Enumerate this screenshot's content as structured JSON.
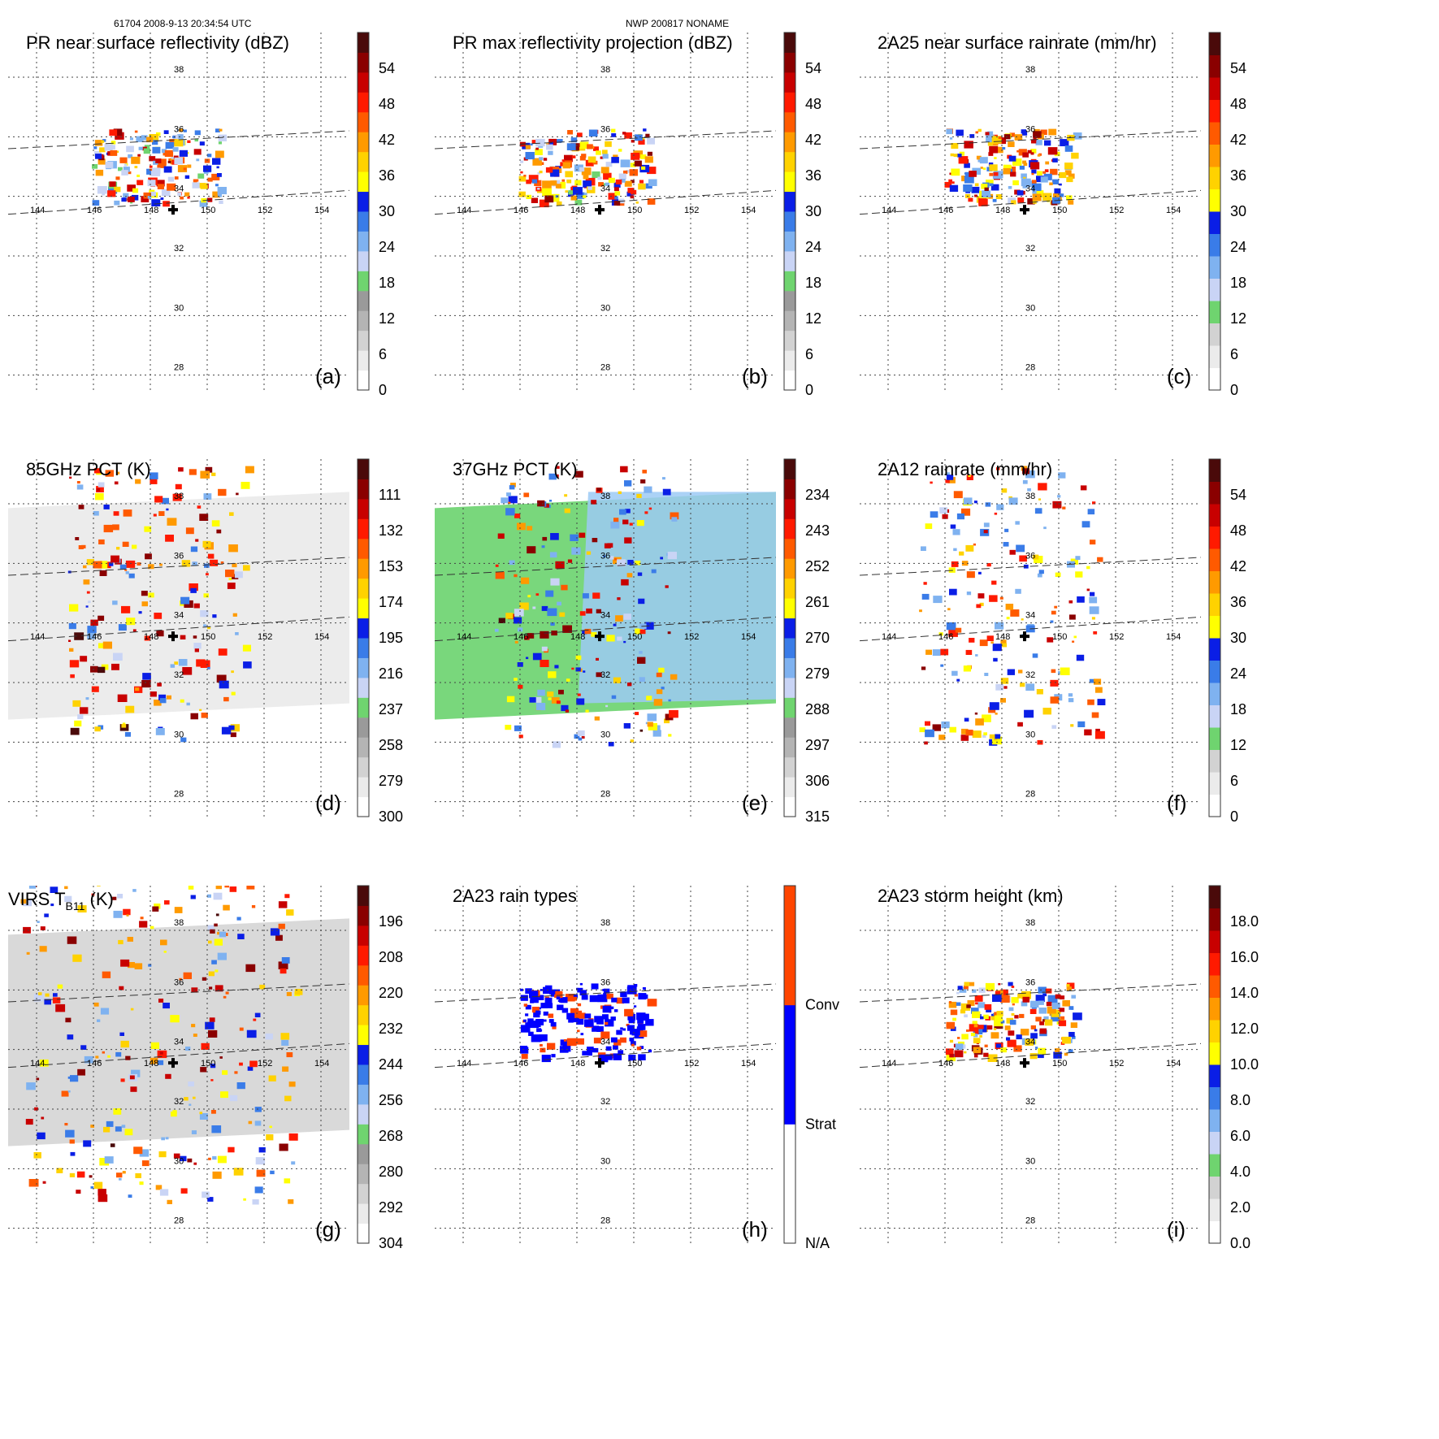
{
  "header": {
    "left": "61704 2008-9-13 20:34:54 UTC",
    "center": "NWP 200817 NONAME"
  },
  "map": {
    "lon_ticks": [
      144,
      146,
      148,
      150,
      152,
      154
    ],
    "lat_ticks": [
      28,
      30,
      32,
      34,
      36,
      38
    ],
    "lon_range": [
      143,
      155
    ],
    "lat_range": [
      27.5,
      39.5
    ],
    "storm_center": {
      "lon": 148.8,
      "lat": 33.55
    },
    "swath_near_edge": {
      "lon": [
        143,
        155
      ],
      "lat": [
        33.4,
        34.2
      ]
    },
    "swath_far_edge": {
      "lon": [
        143,
        155
      ],
      "lat": [
        35.6,
        36.2
      ]
    }
  },
  "chart_data": [
    {
      "id": "a",
      "type": "heatmap",
      "panel_label": "(a)",
      "title": "PR near surface reflectivity (dBZ)",
      "colorbar": {
        "labels": [
          "0",
          "6",
          "12",
          "18",
          "24",
          "30",
          "36",
          "42",
          "48",
          "54"
        ],
        "values": [
          0,
          6,
          12,
          18,
          24,
          30,
          36,
          42,
          48,
          54
        ],
        "range": [
          0,
          60
        ],
        "scheme": "reflectivity"
      },
      "coverage": "pr_swath"
    },
    {
      "id": "b",
      "type": "heatmap",
      "panel_label": "(b)",
      "title": "PR max reflectivity projection (dBZ)",
      "colorbar": {
        "labels": [
          "0",
          "6",
          "12",
          "18",
          "24",
          "30",
          "36",
          "42",
          "48",
          "54"
        ],
        "values": [
          0,
          6,
          12,
          18,
          24,
          30,
          36,
          42,
          48,
          54
        ],
        "range": [
          0,
          60
        ],
        "scheme": "reflectivity"
      },
      "coverage": "pr_swath"
    },
    {
      "id": "c",
      "type": "heatmap",
      "panel_label": "(c)",
      "title": "2A25 near surface rainrate (mm/hr)",
      "colorbar": {
        "labels": [
          "0",
          "6",
          "12",
          "18",
          "24",
          "30",
          "36",
          "42",
          "48",
          "54"
        ],
        "values": [
          0,
          6,
          12,
          18,
          24,
          30,
          36,
          42,
          48,
          54
        ],
        "range": [
          0,
          60
        ],
        "scheme": "rainrate"
      },
      "coverage": "pr_swath"
    },
    {
      "id": "d",
      "type": "heatmap",
      "panel_label": "(d)",
      "title": "85GHz PCT (K)",
      "colorbar": {
        "labels": [
          "300",
          "279",
          "258",
          "237",
          "216",
          "195",
          "174",
          "153",
          "132",
          "111"
        ],
        "values": [
          300,
          279,
          258,
          237,
          216,
          195,
          174,
          153,
          132,
          111
        ],
        "range": [
          300,
          90
        ],
        "scheme": "pct"
      },
      "coverage": "tmi_swath"
    },
    {
      "id": "e",
      "type": "heatmap",
      "panel_label": "(e)",
      "title": "37GHz PCT (K)",
      "colorbar": {
        "labels": [
          "315",
          "306",
          "297",
          "288",
          "279",
          "270",
          "261",
          "252",
          "243",
          "234"
        ],
        "values": [
          315,
          306,
          297,
          288,
          279,
          270,
          261,
          252,
          243,
          234
        ],
        "range": [
          315,
          225
        ],
        "scheme": "pct"
      },
      "coverage": "tmi_swath"
    },
    {
      "id": "f",
      "type": "heatmap",
      "panel_label": "(f)",
      "title": "2A12 rainrate (mm/hr)",
      "colorbar": {
        "labels": [
          "0",
          "6",
          "12",
          "18",
          "24",
          "30",
          "36",
          "42",
          "48",
          "54"
        ],
        "values": [
          0,
          6,
          12,
          18,
          24,
          30,
          36,
          42,
          48,
          54
        ],
        "range": [
          0,
          60
        ],
        "scheme": "rainrate"
      },
      "coverage": "tmi_swath"
    },
    {
      "id": "g",
      "type": "heatmap",
      "panel_label": "(g)",
      "title_main": "VIRS T",
      "title_sub": "B11",
      "title_unit": " (K)",
      "colorbar": {
        "labels": [
          "304",
          "292",
          "280",
          "268",
          "256",
          "244",
          "232",
          "220",
          "208",
          "196"
        ],
        "values": [
          304,
          292,
          280,
          268,
          256,
          244,
          232,
          220,
          208,
          196
        ],
        "range": [
          304,
          184
        ],
        "scheme": "pct"
      },
      "coverage": "virs_swath"
    },
    {
      "id": "h",
      "type": "heatmap",
      "panel_label": "(h)",
      "title": "2A23 rain types",
      "colorbar": {
        "labels": [
          "N/A",
          "Strat",
          "Conv"
        ],
        "values": [
          0,
          1,
          2
        ],
        "range": [
          0,
          3
        ],
        "scheme": "raintype"
      },
      "coverage": "pr_swath"
    },
    {
      "id": "i",
      "type": "heatmap",
      "panel_label": "(i)",
      "title": "2A23 storm height (km)",
      "colorbar": {
        "labels": [
          "0.0",
          "2.0",
          "4.0",
          "6.0",
          "8.0",
          "10.0",
          "12.0",
          "14.0",
          "16.0",
          "18.0"
        ],
        "values": [
          0,
          2,
          4,
          6,
          8,
          10,
          12,
          14,
          16,
          18
        ],
        "range": [
          0,
          20
        ],
        "scheme": "height"
      },
      "coverage": "pr_swath"
    }
  ],
  "colors": {
    "grey_ramp": [
      "#ffffff",
      "#ebebeb",
      "#d2d2d2",
      "#b4b4b4",
      "#9a9a9a"
    ],
    "green": "#6fd46f",
    "blues": [
      "#c9d4f5",
      "#7fb2f0",
      "#3a7ce8",
      "#0a1ee6"
    ],
    "warm": [
      "#ffff00",
      "#ffd200",
      "#ff9a00",
      "#ff5a00",
      "#ff1a00",
      "#c80000",
      "#8a0000",
      "#4a0a0a"
    ],
    "raintype": [
      "#ffffff",
      "#0000ff",
      "#ff4500"
    ]
  }
}
